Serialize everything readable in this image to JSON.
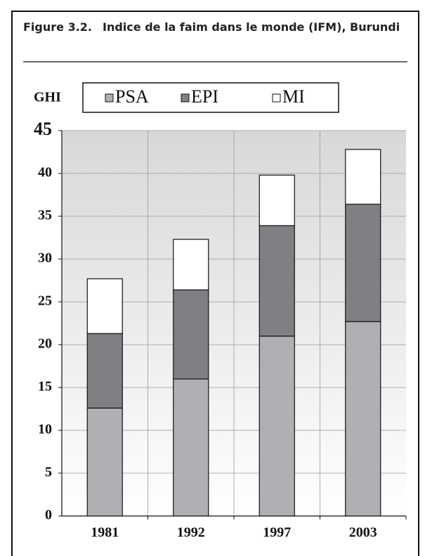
{
  "chart_data": {
    "type": "stacked_bar",
    "figure_label": "Figure 3.2.",
    "title": "Indice de la faim dans le monde (IFM), Burundi",
    "y_label": "GHI",
    "categories": [
      "1981",
      "1992",
      "1997",
      "2003"
    ],
    "series": [
      {
        "name": "PSA",
        "color": "#b0b0b4",
        "values": [
          12.6,
          16.0,
          21.0,
          22.7
        ]
      },
      {
        "name": "EPI",
        "color": "#808084",
        "values": [
          8.7,
          10.4,
          12.9,
          13.7
        ]
      },
      {
        "name": "MI",
        "color": "#ffffff",
        "values": [
          6.4,
          5.9,
          5.9,
          6.4
        ]
      }
    ],
    "ylim": [
      0,
      45
    ],
    "yticks": [
      0,
      5,
      10,
      15,
      20,
      25,
      30,
      35,
      40,
      45
    ],
    "grid": true
  }
}
